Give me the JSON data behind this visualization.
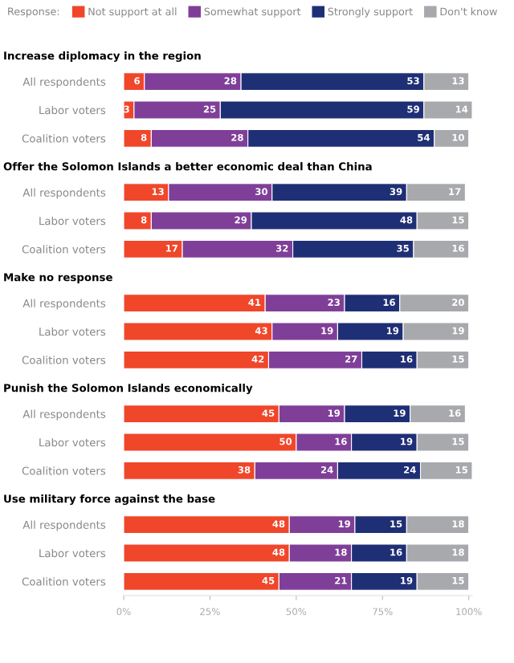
{
  "chart_data": [
    {
      "type": "bar",
      "orientation": "horizontal",
      "stacked": true,
      "data_labels": true,
      "title": "Increase diplomacy in the region",
      "legend": "top",
      "legend_title": "Response:",
      "tick_labels": "y",
      "xlim": [
        0,
        101
      ],
      "categories": [
        "All respondents",
        "Labor voters",
        "Coalition voters"
      ],
      "series": [
        {
          "name": "Not support at all",
          "color": "#f0462a",
          "values": [
            6,
            3,
            8
          ]
        },
        {
          "name": "Somewhat support",
          "color": "#7f3f98",
          "values": [
            28,
            25,
            28
          ]
        },
        {
          "name": "Strongly support",
          "color": "#1f2f75",
          "values": [
            53,
            59,
            54
          ]
        },
        {
          "name": "Don't know",
          "color": "#a7a9ac",
          "values": [
            13,
            14,
            10
          ]
        }
      ]
    },
    {
      "type": "bar",
      "orientation": "horizontal",
      "stacked": true,
      "data_labels": true,
      "title": "Offer the Solomon Islands a better economic deal than China",
      "tick_labels": "y",
      "xlim": [
        0,
        101
      ],
      "categories": [
        "All respondents",
        "Labor voters",
        "Coalition voters"
      ],
      "series": [
        {
          "color": "#f0462a",
          "values": [
            13,
            8,
            17
          ]
        },
        {
          "color": "#7f3f98",
          "values": [
            30,
            29,
            32
          ]
        },
        {
          "color": "#1f2f75",
          "values": [
            39,
            48,
            35
          ]
        },
        {
          "color": "#a7a9ac",
          "values": [
            17,
            15,
            16
          ]
        }
      ]
    },
    {
      "type": "bar",
      "orientation": "horizontal",
      "stacked": true,
      "data_labels": true,
      "title": "Make no response",
      "tick_labels": "y",
      "xlim": [
        0,
        101
      ],
      "categories": [
        "All respondents",
        "Labor voters",
        "Coalition voters"
      ],
      "series": [
        {
          "color": "#f0462a",
          "values": [
            41,
            43,
            42
          ]
        },
        {
          "color": "#7f3f98",
          "values": [
            23,
            19,
            27
          ]
        },
        {
          "color": "#1f2f75",
          "values": [
            16,
            19,
            16
          ]
        },
        {
          "color": "#a7a9ac",
          "values": [
            20,
            19,
            15
          ]
        }
      ]
    },
    {
      "type": "bar",
      "orientation": "horizontal",
      "stacked": true,
      "data_labels": true,
      "title": "Punish the Solomon Islands economically",
      "tick_labels": "y",
      "xlim": [
        0,
        101
      ],
      "categories": [
        "All respondents",
        "Labor voters",
        "Coalition voters"
      ],
      "series": [
        {
          "color": "#f0462a",
          "values": [
            45,
            50,
            38
          ]
        },
        {
          "color": "#7f3f98",
          "values": [
            19,
            16,
            24
          ]
        },
        {
          "color": "#1f2f75",
          "values": [
            19,
            19,
            24
          ]
        },
        {
          "color": "#a7a9ac",
          "values": [
            16,
            15,
            15
          ]
        }
      ]
    },
    {
      "type": "bar",
      "orientation": "horizontal",
      "stacked": true,
      "data_labels": true,
      "title": "Use military force against the base",
      "xlim": [
        0,
        101
      ],
      "xticks": [
        {
          "value": 0,
          "label": "0%"
        },
        {
          "value": 25,
          "label": "25%"
        },
        {
          "value": 50,
          "label": "50%"
        },
        {
          "value": 75,
          "label": "75%"
        },
        {
          "value": 100,
          "label": "100%"
        }
      ],
      "categories": [
        "All respondents",
        "Labor voters",
        "Coalition voters"
      ],
      "series": [
        {
          "color": "#f0462a",
          "values": [
            48,
            48,
            45
          ]
        },
        {
          "color": "#7f3f98",
          "values": [
            19,
            18,
            21
          ]
        },
        {
          "color": "#1f2f75",
          "values": [
            15,
            16,
            19
          ]
        },
        {
          "color": "#a7a9ac",
          "values": [
            18,
            18,
            15
          ]
        }
      ]
    }
  ]
}
